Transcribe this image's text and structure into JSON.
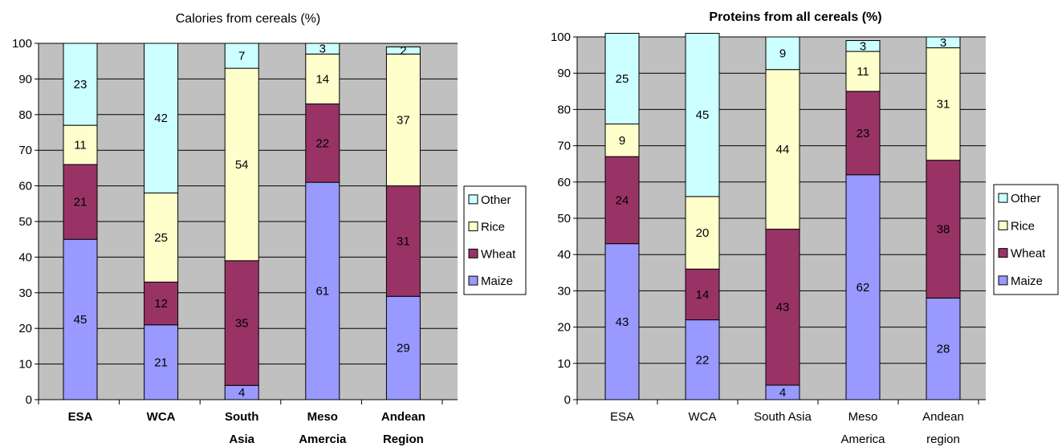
{
  "colors": {
    "plot_bg": "#c0c0c0",
    "gridline": "#000000",
    "outline": "#000000",
    "Maize": "#9999ff",
    "Wheat": "#993366",
    "Rice": "#ffffcc",
    "Other": "#ccffff"
  },
  "chart_data": [
    {
      "type": "bar",
      "stacked": true,
      "title": "Calories from cereals (%)",
      "title_bold": false,
      "category_labels_bold": true,
      "categories": [
        [
          "ESA"
        ],
        [
          "WCA"
        ],
        [
          "South",
          "Asia"
        ],
        [
          "Meso",
          "Amercia"
        ],
        [
          "Andean",
          "Region"
        ]
      ],
      "series": [
        {
          "name": "Maize",
          "values": [
            45,
            21,
            4,
            61,
            29
          ]
        },
        {
          "name": "Wheat",
          "values": [
            21,
            12,
            35,
            22,
            31
          ]
        },
        {
          "name": "Rice",
          "values": [
            11,
            25,
            54,
            14,
            37
          ]
        },
        {
          "name": "Other",
          "values": [
            23,
            42,
            7,
            3,
            2
          ]
        }
      ],
      "ylim": [
        0,
        100
      ],
      "yticks": [
        0,
        10,
        20,
        30,
        40,
        50,
        60,
        70,
        80,
        90,
        100
      ],
      "grid": true,
      "legend": {
        "position": "right",
        "order": [
          "Other",
          "Rice",
          "Wheat",
          "Maize"
        ]
      }
    },
    {
      "type": "bar",
      "stacked": true,
      "title": "Proteins from all cereals (%)",
      "title_bold": true,
      "category_labels_bold": false,
      "categories": [
        [
          "ESA"
        ],
        [
          "WCA"
        ],
        [
          "South Asia"
        ],
        [
          "Meso",
          "America"
        ],
        [
          "Andean",
          "region"
        ]
      ],
      "series": [
        {
          "name": "Maize",
          "values": [
            43,
            22,
            4,
            62,
            28
          ]
        },
        {
          "name": "Wheat",
          "values": [
            24,
            14,
            43,
            23,
            38
          ]
        },
        {
          "name": "Rice",
          "values": [
            9,
            20,
            44,
            11,
            31
          ]
        },
        {
          "name": "Other",
          "values": [
            25,
            45,
            9,
            3,
            3
          ]
        }
      ],
      "ylim": [
        0,
        100
      ],
      "yticks": [
        0,
        10,
        20,
        30,
        40,
        50,
        60,
        70,
        80,
        90,
        100
      ],
      "grid": true,
      "legend": {
        "position": "right",
        "order": [
          "Other",
          "Rice",
          "Wheat",
          "Maize"
        ]
      }
    }
  ]
}
